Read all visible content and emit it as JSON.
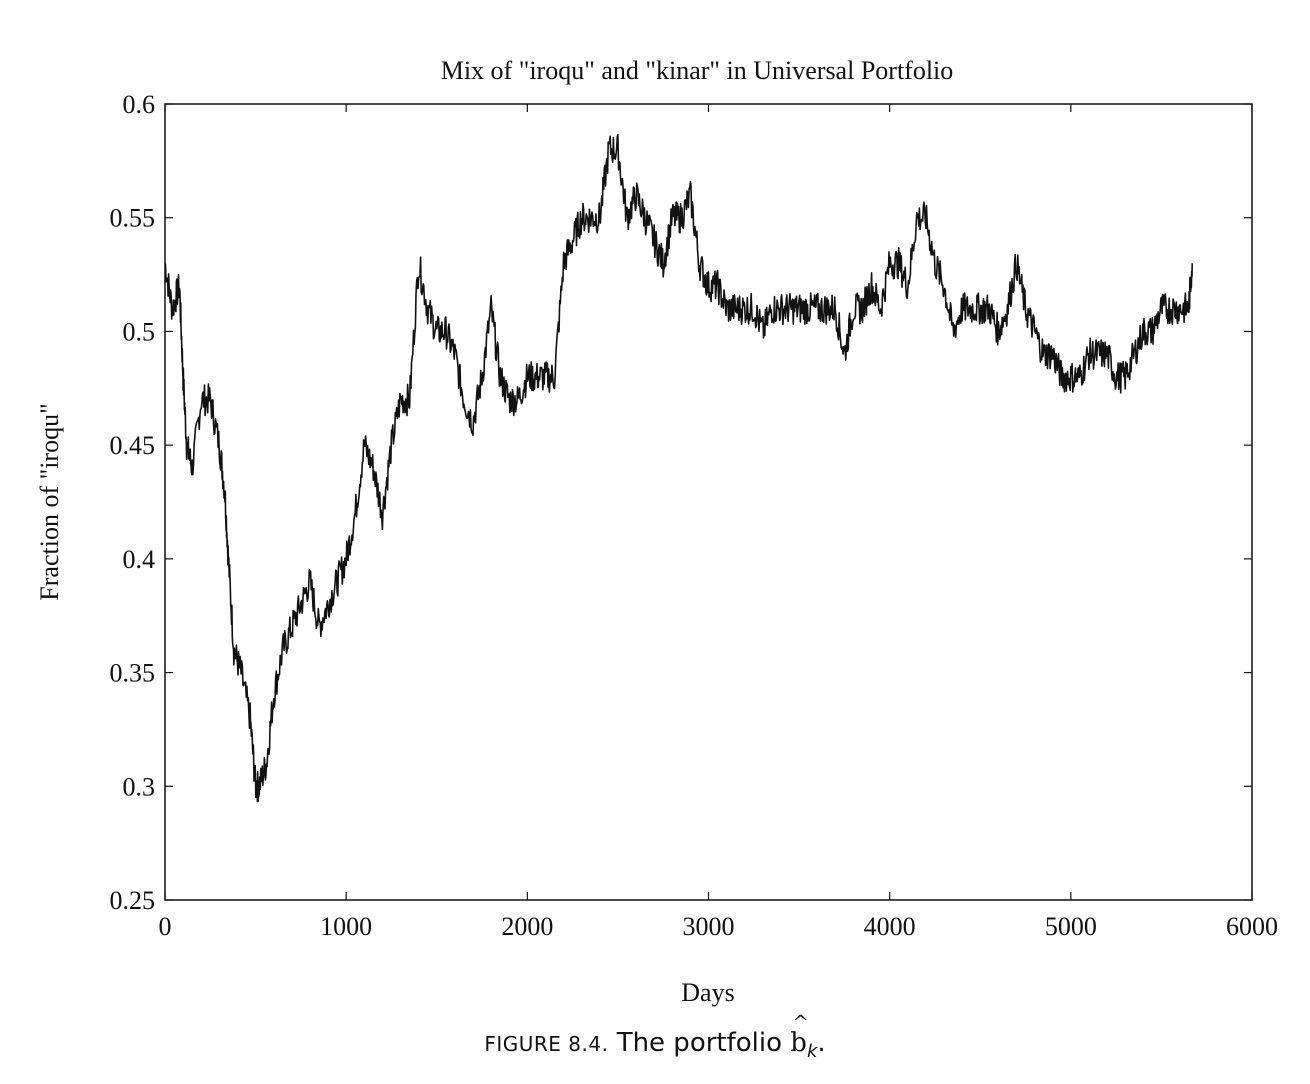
{
  "chart_data": {
    "type": "line",
    "title": "Mix of \"iroqu\" and \"kinar\" in Universal Portfolio",
    "xlabel": "Days",
    "ylabel": "Fraction of \"iroqu\"",
    "xlim": [
      0,
      6000
    ],
    "ylim": [
      0.25,
      0.6
    ],
    "xticks": [
      "0",
      "1000",
      "2000",
      "3000",
      "4000",
      "5000",
      "6000"
    ],
    "yticks": [
      "0.25",
      "0.3",
      "0.35",
      "0.4",
      "0.45",
      "0.5",
      "0.55",
      "0.6"
    ],
    "grid": false,
    "series": [
      {
        "x": [
          0,
          40,
          80,
          100,
          120,
          150,
          200,
          250,
          300,
          330,
          350,
          380,
          420,
          470,
          500,
          520,
          560,
          600,
          650,
          700,
          750,
          800,
          850,
          900,
          950,
          1000,
          1050,
          1100,
          1150,
          1200,
          1250,
          1300,
          1350,
          1400,
          1450,
          1500,
          1550,
          1600,
          1650,
          1700,
          1750,
          1800,
          1850,
          1900,
          1950,
          2000,
          2050,
          2100,
          2150,
          2200,
          2250,
          2300,
          2350,
          2400,
          2450,
          2500,
          2550,
          2600,
          2650,
          2700,
          2750,
          2800,
          2850,
          2900,
          2950,
          3000,
          3050,
          3100,
          3150,
          3200,
          3250,
          3300,
          3350,
          3400,
          3450,
          3500,
          3550,
          3600,
          3650,
          3700,
          3750,
          3800,
          3850,
          3900,
          3950,
          4000,
          4050,
          4100,
          4150,
          4200,
          4250,
          4300,
          4350,
          4400,
          4450,
          4500,
          4550,
          4600,
          4650,
          4700,
          4750,
          4800,
          4850,
          4900,
          4950,
          5000,
          5050,
          5100,
          5150,
          5200,
          5250,
          5300,
          5350,
          5400,
          5450,
          5500,
          5550,
          5600,
          5650,
          5670
        ],
        "y": [
          0.53,
          0.51,
          0.52,
          0.48,
          0.45,
          0.44,
          0.47,
          0.47,
          0.45,
          0.43,
          0.4,
          0.36,
          0.35,
          0.33,
          0.3,
          0.3,
          0.31,
          0.34,
          0.36,
          0.37,
          0.38,
          0.39,
          0.37,
          0.38,
          0.39,
          0.4,
          0.42,
          0.45,
          0.44,
          0.42,
          0.45,
          0.47,
          0.47,
          0.53,
          0.51,
          0.5,
          0.5,
          0.49,
          0.47,
          0.46,
          0.48,
          0.51,
          0.48,
          0.47,
          0.47,
          0.48,
          0.48,
          0.48,
          0.48,
          0.53,
          0.54,
          0.55,
          0.55,
          0.55,
          0.58,
          0.58,
          0.55,
          0.56,
          0.55,
          0.54,
          0.53,
          0.55,
          0.55,
          0.56,
          0.53,
          0.52,
          0.52,
          0.51,
          0.51,
          0.51,
          0.51,
          0.5,
          0.51,
          0.51,
          0.51,
          0.51,
          0.51,
          0.51,
          0.51,
          0.51,
          0.49,
          0.51,
          0.51,
          0.52,
          0.51,
          0.53,
          0.53,
          0.52,
          0.55,
          0.55,
          0.53,
          0.52,
          0.5,
          0.51,
          0.51,
          0.51,
          0.51,
          0.5,
          0.51,
          0.53,
          0.51,
          0.5,
          0.49,
          0.49,
          0.48,
          0.48,
          0.48,
          0.49,
          0.49,
          0.49,
          0.48,
          0.48,
          0.49,
          0.5,
          0.5,
          0.51,
          0.51,
          0.51,
          0.51,
          0.53
        ]
      }
    ]
  },
  "caption": {
    "figure_label": "FIGURE 8.4.",
    "text": "The portfolio",
    "symbol": "b",
    "subscript": "k"
  }
}
